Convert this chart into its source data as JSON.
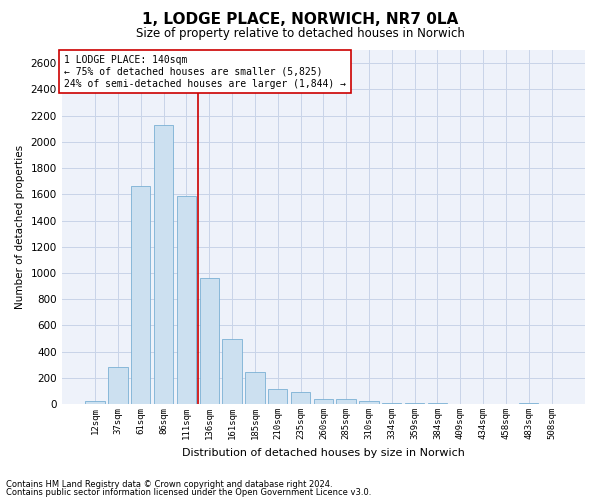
{
  "title": "1, LODGE PLACE, NORWICH, NR7 0LA",
  "subtitle": "Size of property relative to detached houses in Norwich",
  "xlabel": "Distribution of detached houses by size in Norwich",
  "ylabel": "Number of detached properties",
  "footnote1": "Contains HM Land Registry data © Crown copyright and database right 2024.",
  "footnote2": "Contains public sector information licensed under the Open Government Licence v3.0.",
  "annotation_line1": "1 LODGE PLACE: 140sqm",
  "annotation_line2": "← 75% of detached houses are smaller (5,825)",
  "annotation_line3": "24% of semi-detached houses are larger (1,844) →",
  "vline_color": "#cc0000",
  "bar_color": "#cce0f0",
  "bar_edge_color": "#7ab0d4",
  "categories": [
    "12sqm",
    "37sqm",
    "61sqm",
    "86sqm",
    "111sqm",
    "136sqm",
    "161sqm",
    "185sqm",
    "210sqm",
    "235sqm",
    "260sqm",
    "285sqm",
    "310sqm",
    "334sqm",
    "359sqm",
    "384sqm",
    "409sqm",
    "434sqm",
    "458sqm",
    "483sqm",
    "508sqm"
  ],
  "values": [
    25,
    280,
    1660,
    2130,
    1590,
    960,
    500,
    245,
    115,
    90,
    38,
    38,
    22,
    12,
    8,
    5,
    3,
    3,
    2,
    8,
    2
  ],
  "ylim": [
    0,
    2700
  ],
  "yticks": [
    0,
    200,
    400,
    600,
    800,
    1000,
    1200,
    1400,
    1600,
    1800,
    2000,
    2200,
    2400,
    2600
  ],
  "grid_color": "#c8d4e8",
  "bg_color": "#eef2fa",
  "title_fontsize": 11,
  "subtitle_fontsize": 8.5,
  "footnote_fontsize": 6,
  "vline_idx": 4.5
}
